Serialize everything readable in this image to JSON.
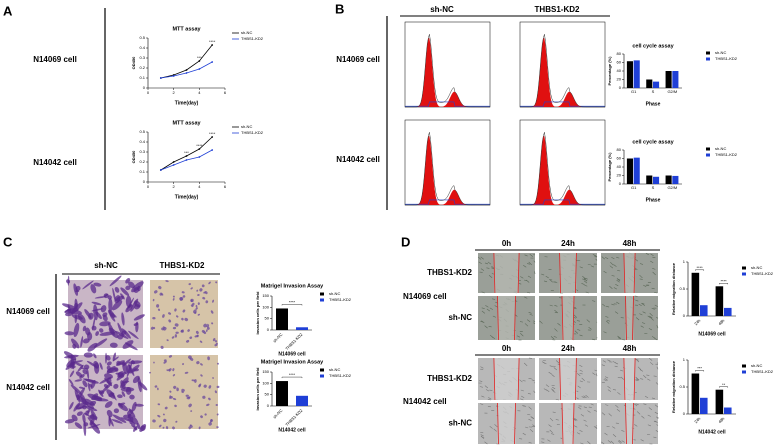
{
  "panels": [
    {
      "label": "A",
      "rows": [
        "N14069 cell",
        "N14042 cell"
      ]
    },
    {
      "label": "B",
      "columns": [
        "sh-NC",
        "THBS1-KD2"
      ],
      "rows": [
        "N14069 cell",
        "N14042 cell"
      ]
    },
    {
      "label": "C",
      "columns": [
        "sh-NC",
        "THBS1-KD2"
      ],
      "rows": [
        "N14069 cell",
        "N14042 cell"
      ]
    },
    {
      "label": "D",
      "columns": [
        "0h",
        "24h",
        "48h"
      ],
      "groups": [
        {
          "name": "N14069 cell",
          "rows": [
            "THBS1-KD2",
            "sh-NC"
          ]
        },
        {
          "name": "N14042 cell",
          "rows": [
            "THBS1-KD2",
            "sh-NC"
          ]
        }
      ]
    }
  ],
  "chart_data": [
    {
      "type": "line",
      "title": "MTT assay",
      "x": [
        1,
        2,
        3,
        4,
        5
      ],
      "xlim": [
        0,
        6
      ],
      "xticks": [
        0,
        2,
        4,
        6
      ],
      "ylim": [
        0,
        0.5
      ],
      "yticks": [
        0,
        0.1,
        0.2,
        0.3,
        0.4,
        0.5
      ],
      "x_label": "Time(day)",
      "y_label": "OD450",
      "series": [
        {
          "name": "sh-NC",
          "color": "#000000",
          "values": [
            0.1,
            0.13,
            0.18,
            0.27,
            0.43
          ]
        },
        {
          "name": "THBS1-KD2",
          "color": "#1f3fd6",
          "values": [
            0.1,
            0.12,
            0.15,
            0.19,
            0.26
          ]
        }
      ],
      "significance": [
        null,
        null,
        null,
        "***",
        "****"
      ]
    },
    {
      "type": "line",
      "title": "MTT assay",
      "x": [
        1,
        2,
        3,
        4,
        5
      ],
      "xlim": [
        0,
        6
      ],
      "xticks": [
        0,
        2,
        4,
        6
      ],
      "ylim": [
        0,
        0.5
      ],
      "yticks": [
        0,
        0.1,
        0.2,
        0.3,
        0.4,
        0.5
      ],
      "x_label": "Time(day)",
      "y_label": "OD450",
      "series": [
        {
          "name": "sh-NC",
          "color": "#000000",
          "values": [
            0.12,
            0.2,
            0.26,
            0.33,
            0.45
          ]
        },
        {
          "name": "THBS1-KD2",
          "color": "#1f3fd6",
          "values": [
            0.12,
            0.17,
            0.22,
            0.25,
            0.32
          ]
        }
      ],
      "significance": [
        null,
        null,
        "***",
        "****",
        "****"
      ]
    },
    {
      "type": "bar",
      "title": "cell cycle assay",
      "categories": [
        "G1",
        "S",
        "G2/M"
      ],
      "x_label": "Phase",
      "y_label": "Percentage (%)",
      "ylim": [
        0,
        80
      ],
      "yticks": [
        0,
        20,
        40,
        60,
        80
      ],
      "series": [
        {
          "name": "sh-NC",
          "color": "#000000",
          "values": [
            63,
            20,
            40
          ]
        },
        {
          "name": "THBS1-KD2",
          "color": "#1f3fd6",
          "values": [
            65,
            15,
            40
          ]
        }
      ]
    },
    {
      "type": "bar",
      "title": "cell cycle assay",
      "categories": [
        "G1",
        "S",
        "G2/M"
      ],
      "x_label": "Phase",
      "y_label": "Percentage (%)",
      "ylim": [
        0,
        80
      ],
      "yticks": [
        0,
        20,
        40,
        60,
        80
      ],
      "series": [
        {
          "name": "sh-NC",
          "color": "#000000",
          "values": [
            60,
            20,
            20
          ]
        },
        {
          "name": "THBS1-KD2",
          "color": "#1f3fd6",
          "values": [
            62,
            17,
            19
          ]
        }
      ]
    },
    {
      "type": "bar",
      "title": "Matrigel Invasion Assay",
      "categories": [
        "sh-NC",
        "THBS1-KD2"
      ],
      "x_label": "N14069 cell",
      "y_label": "Invasion cells per field",
      "ylim": [
        0,
        150
      ],
      "yticks": [
        0,
        50,
        100,
        150
      ],
      "values": [
        95,
        12
      ],
      "colors": [
        "#000000",
        "#1f3fd6"
      ],
      "significance": "****"
    },
    {
      "type": "bar",
      "title": "Matrigel Invasion Assay",
      "categories": [
        "sh-NC",
        "THBS1-KD2"
      ],
      "x_label": "N14042 cell",
      "y_label": "Invasion cells per field",
      "ylim": [
        0,
        150
      ],
      "yticks": [
        0,
        50,
        100,
        150
      ],
      "values": [
        110,
        45
      ],
      "colors": [
        "#000000",
        "#1f3fd6"
      ],
      "significance": "****"
    },
    {
      "type": "bar",
      "categories": [
        "24h",
        "48h"
      ],
      "x_label": "N14069 cell",
      "y_label": "Relative migration distance",
      "ylim": [
        0,
        1
      ],
      "yticks": [
        0,
        0.5,
        1
      ],
      "series": [
        {
          "name": "sh-NC",
          "color": "#000000",
          "values": [
            0.8,
            0.55
          ]
        },
        {
          "name": "THBS1-KD2",
          "color": "#1f3fd6",
          "values": [
            0.2,
            0.15
          ]
        }
      ],
      "significance": [
        "****",
        "****"
      ]
    },
    {
      "type": "bar",
      "categories": [
        "24h",
        "48h"
      ],
      "x_label": "N14042 cell",
      "y_label": "Relative migration distance",
      "ylim": [
        0,
        1
      ],
      "yticks": [
        0,
        0.5,
        1
      ],
      "series": [
        {
          "name": "sh-NC",
          "color": "#000000",
          "values": [
            0.75,
            0.45
          ]
        },
        {
          "name": "THBS1-KD2",
          "color": "#1f3fd6",
          "values": [
            0.3,
            0.12
          ]
        }
      ],
      "significance": [
        "***",
        "**"
      ]
    }
  ]
}
